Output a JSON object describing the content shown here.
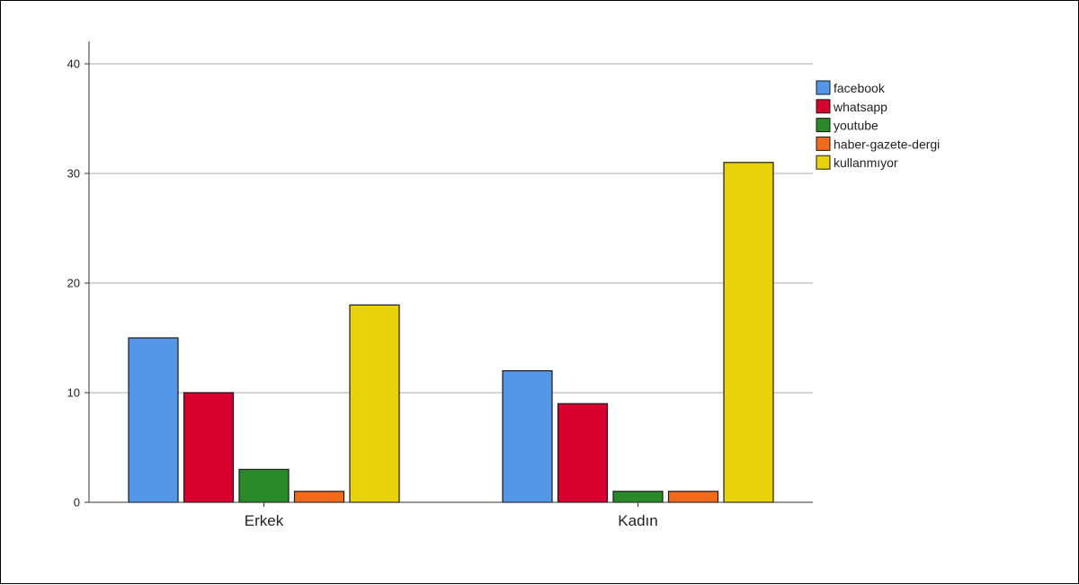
{
  "chart_data": {
    "type": "bar",
    "title": "",
    "xlabel": "",
    "ylabel": "",
    "categories": [
      "Erkek",
      "Kadın"
    ],
    "series": [
      {
        "name": "facebook",
        "color": "#5596E6",
        "values": [
          15,
          12
        ]
      },
      {
        "name": "whatsapp",
        "color": "#D8002E",
        "values": [
          10,
          9
        ]
      },
      {
        "name": "youtube",
        "color": "#2A8A2A",
        "values": [
          3,
          1
        ]
      },
      {
        "name": "haber-gazete-dergi",
        "color": "#F26A1B",
        "values": [
          1,
          1
        ]
      },
      {
        "name": "kullanmıyor",
        "color": "#E8D30A",
        "values": [
          18,
          31
        ]
      }
    ],
    "ylim": [
      0,
      42
    ],
    "yticks": [
      0,
      10,
      20,
      30,
      40
    ],
    "grid": true,
    "legend_position": "top-right"
  }
}
